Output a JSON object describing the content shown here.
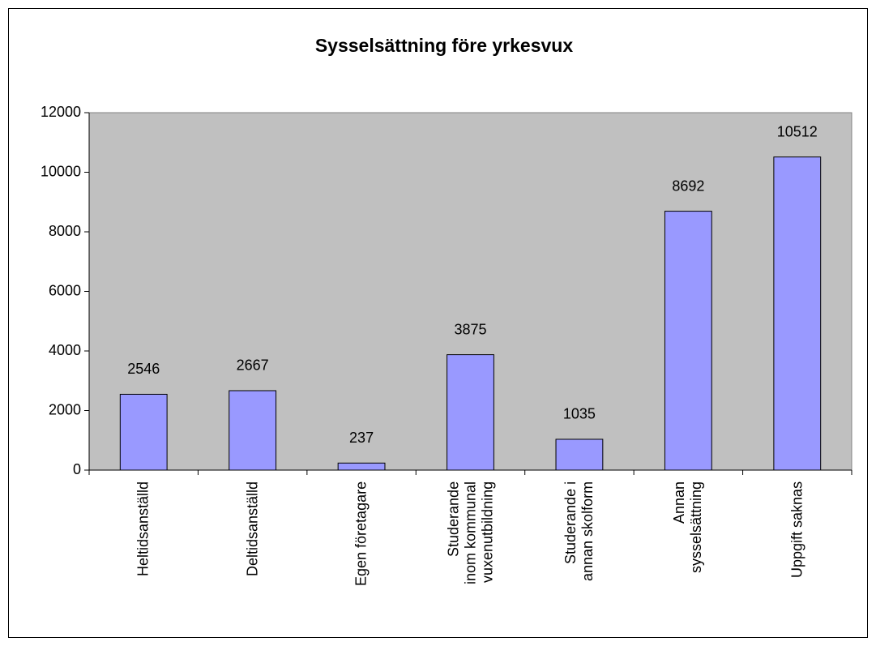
{
  "chart_data": {
    "type": "bar",
    "title": "Sysselsättning före yrkesvux",
    "categories": [
      "Heltidsanställd",
      "Deltidsanställd",
      "Egen företagare",
      "Studerande\ninom kommunal\nvuxenutbildning",
      "Studerande i\nannan skolform",
      "Annan\nsysselsättning",
      "Uppgift saknas"
    ],
    "values": [
      2546,
      2667,
      237,
      3875,
      1035,
      8692,
      10512
    ],
    "color": "#9999ff",
    "ylim": [
      0,
      12000
    ],
    "yticks": [
      0,
      2000,
      4000,
      6000,
      8000,
      10000,
      12000
    ],
    "plot_background": "#c0c0c0"
  }
}
